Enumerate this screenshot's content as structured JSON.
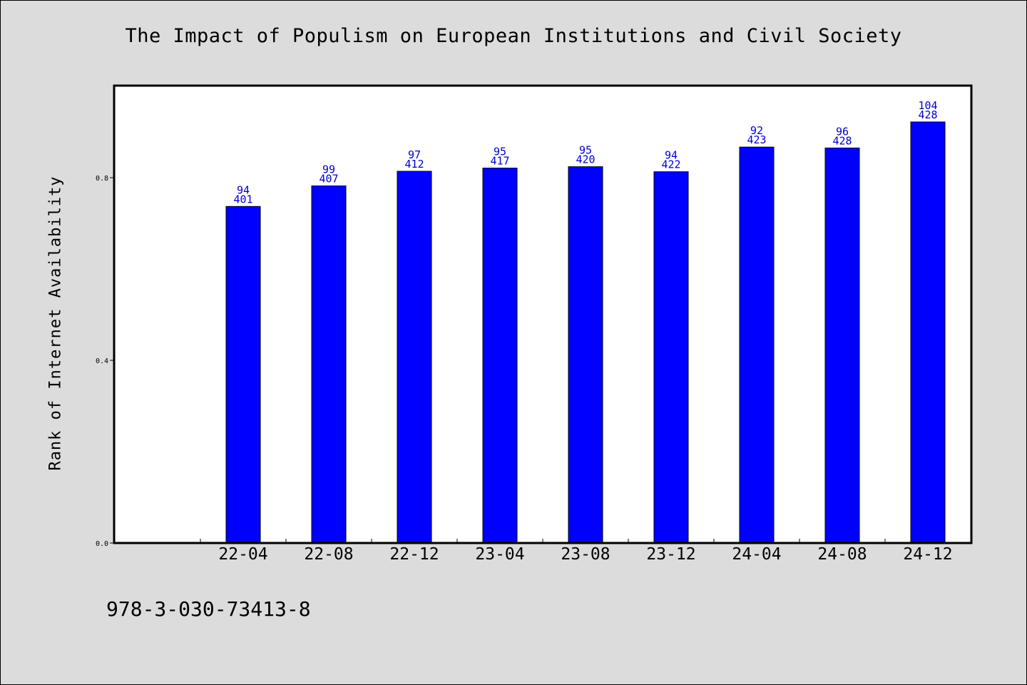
{
  "chart_data": {
    "type": "bar",
    "title": "The Impact of Populism on European Institutions and Civil Society",
    "ylabel": "Rank of Internet Availability",
    "xlabel": "",
    "ylim": [
      0.0,
      1.0
    ],
    "yticks": [
      "0.0",
      "0.4",
      "0.8"
    ],
    "ytick_values": [
      0.0,
      0.4,
      0.8
    ],
    "categories": [
      "22-04",
      "22-08",
      "22-12",
      "23-04",
      "23-08",
      "23-12",
      "24-04",
      "24-08",
      "24-12"
    ],
    "values": [
      0.737,
      0.782,
      0.814,
      0.821,
      0.824,
      0.813,
      0.867,
      0.865,
      0.922
    ],
    "labels_top": [
      "94",
      "99",
      "97",
      "95",
      "95",
      "94",
      "92",
      "96",
      "104"
    ],
    "labels_bottom": [
      "401",
      "407",
      "412",
      "417",
      "420",
      "422",
      "423",
      "428",
      "428"
    ],
    "bar_color": "#0000ff",
    "label_color": "#0000cc",
    "grid": false,
    "legend": "none"
  },
  "footer": {
    "code": "978-3-030-73413-8"
  },
  "colors": {
    "background": "#dcdcdc",
    "plot_background": "#ffffff"
  }
}
